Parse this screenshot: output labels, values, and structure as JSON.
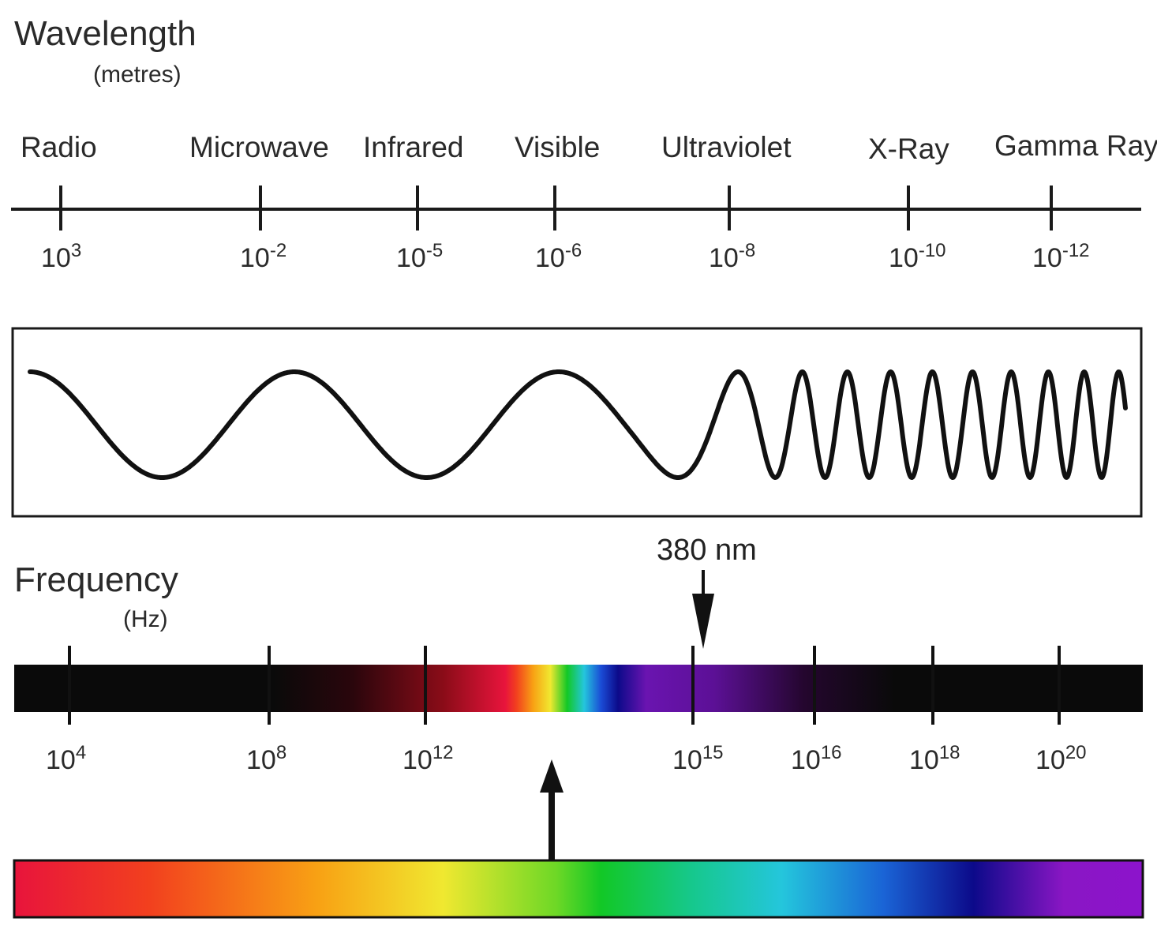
{
  "wavelength": {
    "title": "Wavelength",
    "unit": "(metres)",
    "bands": [
      "Radio",
      "Microwave",
      "Infrared",
      "Visible",
      "Ultraviolet",
      "X-Ray",
      "Gamma Ray"
    ],
    "ticks": [
      {
        "base": "10",
        "exp": "3"
      },
      {
        "base": "10",
        "exp": "-2"
      },
      {
        "base": "10",
        "exp": "-5"
      },
      {
        "base": "10",
        "exp": "-6"
      },
      {
        "base": "10",
        "exp": "-8"
      },
      {
        "base": "10",
        "exp": "-10"
      },
      {
        "base": "10",
        "exp": "-12"
      }
    ]
  },
  "frequency": {
    "title": "Frequency",
    "unit": "(Hz)",
    "ticks": [
      {
        "base": "10",
        "exp": "4"
      },
      {
        "base": "10",
        "exp": "8"
      },
      {
        "base": "10",
        "exp": "12"
      },
      {
        "base": "10",
        "exp": "15"
      },
      {
        "base": "10",
        "exp": "16"
      },
      {
        "base": "10",
        "exp": "18"
      },
      {
        "base": "10",
        "exp": "20"
      }
    ]
  },
  "marker": {
    "label": "380 nm"
  },
  "colors": {
    "ink": "#1a1a1a",
    "spectrum": [
      "#e8143c",
      "#f2401e",
      "#f8a214",
      "#f0e830",
      "#6ed826",
      "#12c826",
      "#16c88c",
      "#24c6dc",
      "#1a64d6",
      "#0c0a8a",
      "#8a16c4",
      "#8c14cc"
    ]
  }
}
